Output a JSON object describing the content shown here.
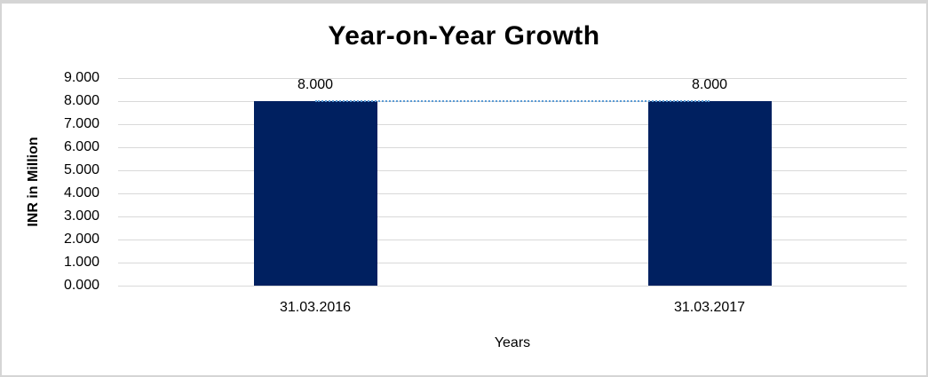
{
  "chart_data": {
    "type": "bar",
    "title": "Year-on-Year Growth",
    "xlabel": "Years",
    "ylabel": "INR in Million",
    "categories": [
      "31.03.2016",
      "31.03.2017"
    ],
    "series": [
      {
        "name": "bars",
        "type": "column",
        "values": [
          8.0,
          8.0
        ],
        "data_labels": [
          "8.000",
          "8.000"
        ],
        "color": "#002060"
      },
      {
        "name": "trend-line",
        "type": "line",
        "values": [
          8.0,
          8.0
        ],
        "color": "#5B9BD5",
        "line_style": "dotted"
      }
    ],
    "ylim": [
      0,
      9
    ],
    "ytick_labels": [
      "0.000",
      "1.000",
      "2.000",
      "3.000",
      "4.000",
      "5.000",
      "6.000",
      "7.000",
      "8.000",
      "9.000"
    ],
    "grid": "horizontal",
    "legend": "none",
    "colors": {
      "bar": "#002060",
      "trend_line": "#5B9BD5",
      "gridline": "#d9d9d9",
      "text": "#000000",
      "frame_border": "#d5d5d5",
      "background": "#ffffff"
    }
  }
}
